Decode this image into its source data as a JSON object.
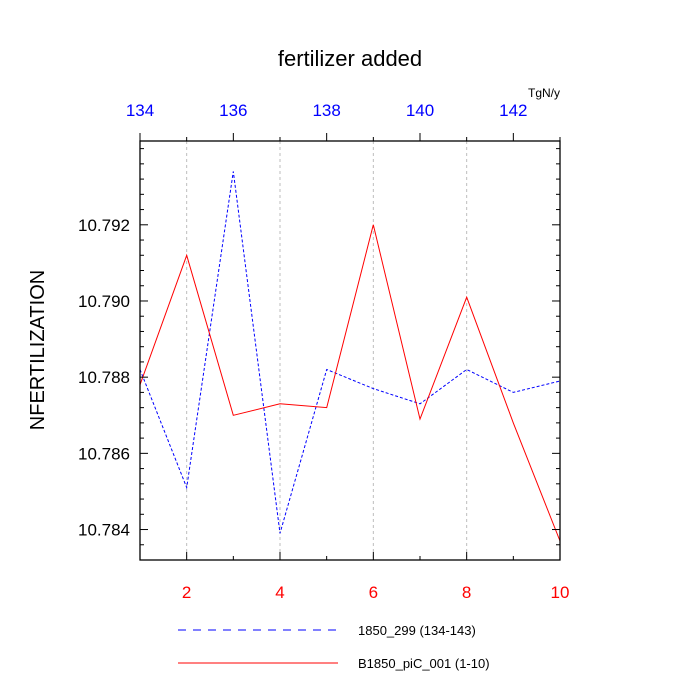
{
  "chart_data": {
    "type": "line",
    "title": "fertilizer added",
    "units": "TgN/y",
    "ylabel": "NFERTILIZATION",
    "ylim": [
      10.7832,
      10.7942
    ],
    "x_bottom": {
      "range": [
        1,
        10
      ],
      "ticks": [
        2,
        4,
        6,
        8,
        10
      ],
      "tick_labels": [
        "2",
        "4",
        "6",
        "8",
        "10"
      ],
      "color": "#ff0000"
    },
    "x_top": {
      "range": [
        134,
        143
      ],
      "ticks": [
        134,
        136,
        138,
        140,
        142
      ],
      "tick_labels": [
        "134",
        "136",
        "138",
        "140",
        "142"
      ],
      "color": "#0000ff"
    },
    "y_ticks": [
      10.784,
      10.786,
      10.788,
      10.79,
      10.792
    ],
    "y_tick_labels": [
      "10.784",
      "10.786",
      "10.788",
      "10.790",
      "10.792"
    ],
    "grid": "vertical dashed at bottom-axis ticks",
    "legend_position": "bottom",
    "series": [
      {
        "name": "1850_299 (134-143)",
        "axis": "top",
        "color": "#0000ff",
        "dash": "dashed",
        "x": [
          134,
          135,
          136,
          137,
          138,
          139,
          140,
          141,
          142,
          143
        ],
        "y": [
          10.7882,
          10.7851,
          10.7934,
          10.7839,
          10.7882,
          10.7877,
          10.7873,
          10.7882,
          10.7876,
          10.7879
        ]
      },
      {
        "name": "B1850_piC_001 (1-10)",
        "axis": "bottom",
        "color": "#ff0000",
        "dash": "solid",
        "x": [
          1,
          2,
          3,
          4,
          5,
          6,
          7,
          8,
          9,
          10
        ],
        "y": [
          10.7878,
          10.7912,
          10.787,
          10.7873,
          10.7872,
          10.792,
          10.7869,
          10.7901,
          10.7868,
          10.7837
        ]
      }
    ]
  }
}
